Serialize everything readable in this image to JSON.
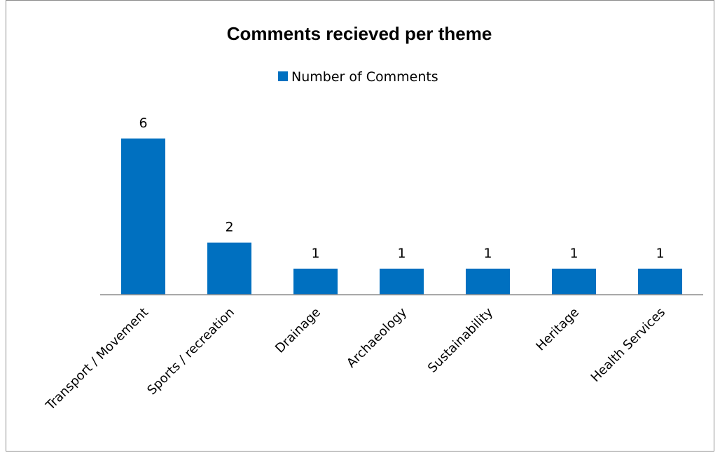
{
  "chart_data": {
    "type": "bar",
    "title": "Comments recieved per theme",
    "categories": [
      "Transport / Movement",
      "Sports / recreation",
      "Drainage",
      "Archaeology",
      "Sustainability",
      "Heritage",
      "Health Services"
    ],
    "series": [
      {
        "name": "Number of Comments",
        "values": [
          6,
          2,
          1,
          1,
          1,
          1,
          1
        ],
        "color": "#0070c0"
      }
    ],
    "xlabel": "",
    "ylabel": "",
    "ylim": [
      0,
      6
    ],
    "grid": false,
    "legend_position": "top-center",
    "data_labels": true
  }
}
